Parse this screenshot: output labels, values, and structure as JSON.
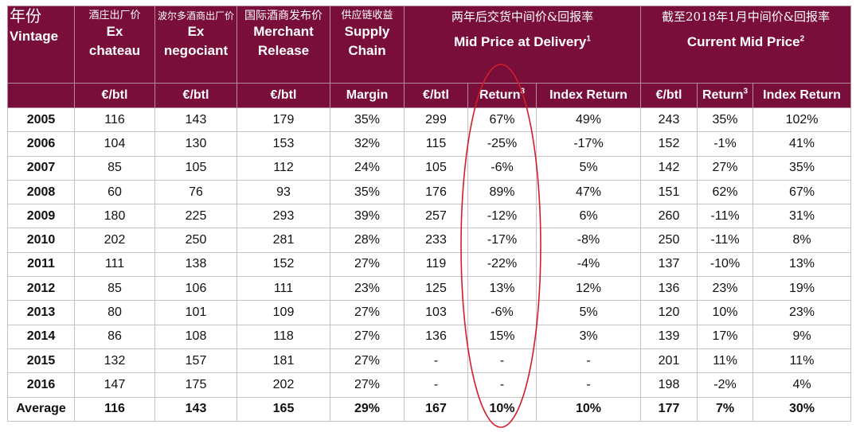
{
  "header": {
    "vintage_cn": "年份",
    "vintage_en": "Vintage",
    "ex_chateau_cn": "酒庄出厂价",
    "ex_chateau_en1": "Ex",
    "ex_chateau_en2": "chateau",
    "ex_negociant_cn": "波尔多酒商出厂价",
    "ex_negociant_en1": "Ex",
    "ex_negociant_en2": "negociant",
    "merchant_cn": "国际酒商发布价",
    "merchant_en1": "Merchant",
    "merchant_en2": "Release",
    "supply_cn": "供应链收益",
    "supply_en1": "Supply",
    "supply_en2": "Chain",
    "delivery_cn": "两年后交货中间价&回报率",
    "delivery_en": "Mid Price at Delivery",
    "delivery_sup": "1",
    "current_cn": "截至2018年1月中间价&回报率",
    "current_en": "Current Mid Price",
    "current_sup": "2"
  },
  "subheader": {
    "ex_chateau": "€/btl",
    "ex_negociant": "€/btl",
    "merchant": "€/btl",
    "supply": "Margin",
    "delivery_price": "€/btl",
    "delivery_return": "Return",
    "delivery_return_sup": "3",
    "delivery_index": "Index Return",
    "current_price": "€/btl",
    "current_return": "Return",
    "current_return_sup": "3",
    "current_index": "Index Return"
  },
  "rows": [
    [
      "2005",
      "116",
      "143",
      "179",
      "35%",
      "299",
      "67%",
      "49%",
      "243",
      "35%",
      "102%"
    ],
    [
      "2006",
      "104",
      "130",
      "153",
      "32%",
      "115",
      "-25%",
      "-17%",
      "152",
      "-1%",
      "41%"
    ],
    [
      "2007",
      "85",
      "105",
      "112",
      "24%",
      "105",
      "-6%",
      "5%",
      "142",
      "27%",
      "35%"
    ],
    [
      "2008",
      "60",
      "76",
      "93",
      "35%",
      "176",
      "89%",
      "47%",
      "151",
      "62%",
      "67%"
    ],
    [
      "2009",
      "180",
      "225",
      "293",
      "39%",
      "257",
      "-12%",
      "6%",
      "260",
      "-11%",
      "31%"
    ],
    [
      "2010",
      "202",
      "250",
      "281",
      "28%",
      "233",
      "-17%",
      "-8%",
      "250",
      "-11%",
      "8%"
    ],
    [
      "2011",
      "111",
      "138",
      "152",
      "27%",
      "119",
      "-22%",
      "-4%",
      "137",
      "-10%",
      "13%"
    ],
    [
      "2012",
      "85",
      "106",
      "111",
      "23%",
      "125",
      "13%",
      "12%",
      "136",
      "23%",
      "19%"
    ],
    [
      "2013",
      "80",
      "101",
      "109",
      "27%",
      "103",
      "-6%",
      "5%",
      "120",
      "10%",
      "23%"
    ],
    [
      "2014",
      "86",
      "108",
      "118",
      "27%",
      "136",
      "15%",
      "3%",
      "139",
      "17%",
      "9%"
    ],
    [
      "2015",
      "132",
      "157",
      "181",
      "27%",
      "-",
      "-",
      "-",
      "201",
      "11%",
      "11%"
    ],
    [
      "2016",
      "147",
      "175",
      "202",
      "27%",
      "-",
      "-",
      "-",
      "198",
      "-2%",
      "4%"
    ]
  ],
  "average": [
    "Average",
    "116",
    "143",
    "165",
    "29%",
    "167",
    "10%",
    "10%",
    "177",
    "7%",
    "30%"
  ],
  "colors": {
    "header_bg": "#7a0e3a",
    "header_text": "#ffffff",
    "highlight_oval": "#d21e2a"
  }
}
